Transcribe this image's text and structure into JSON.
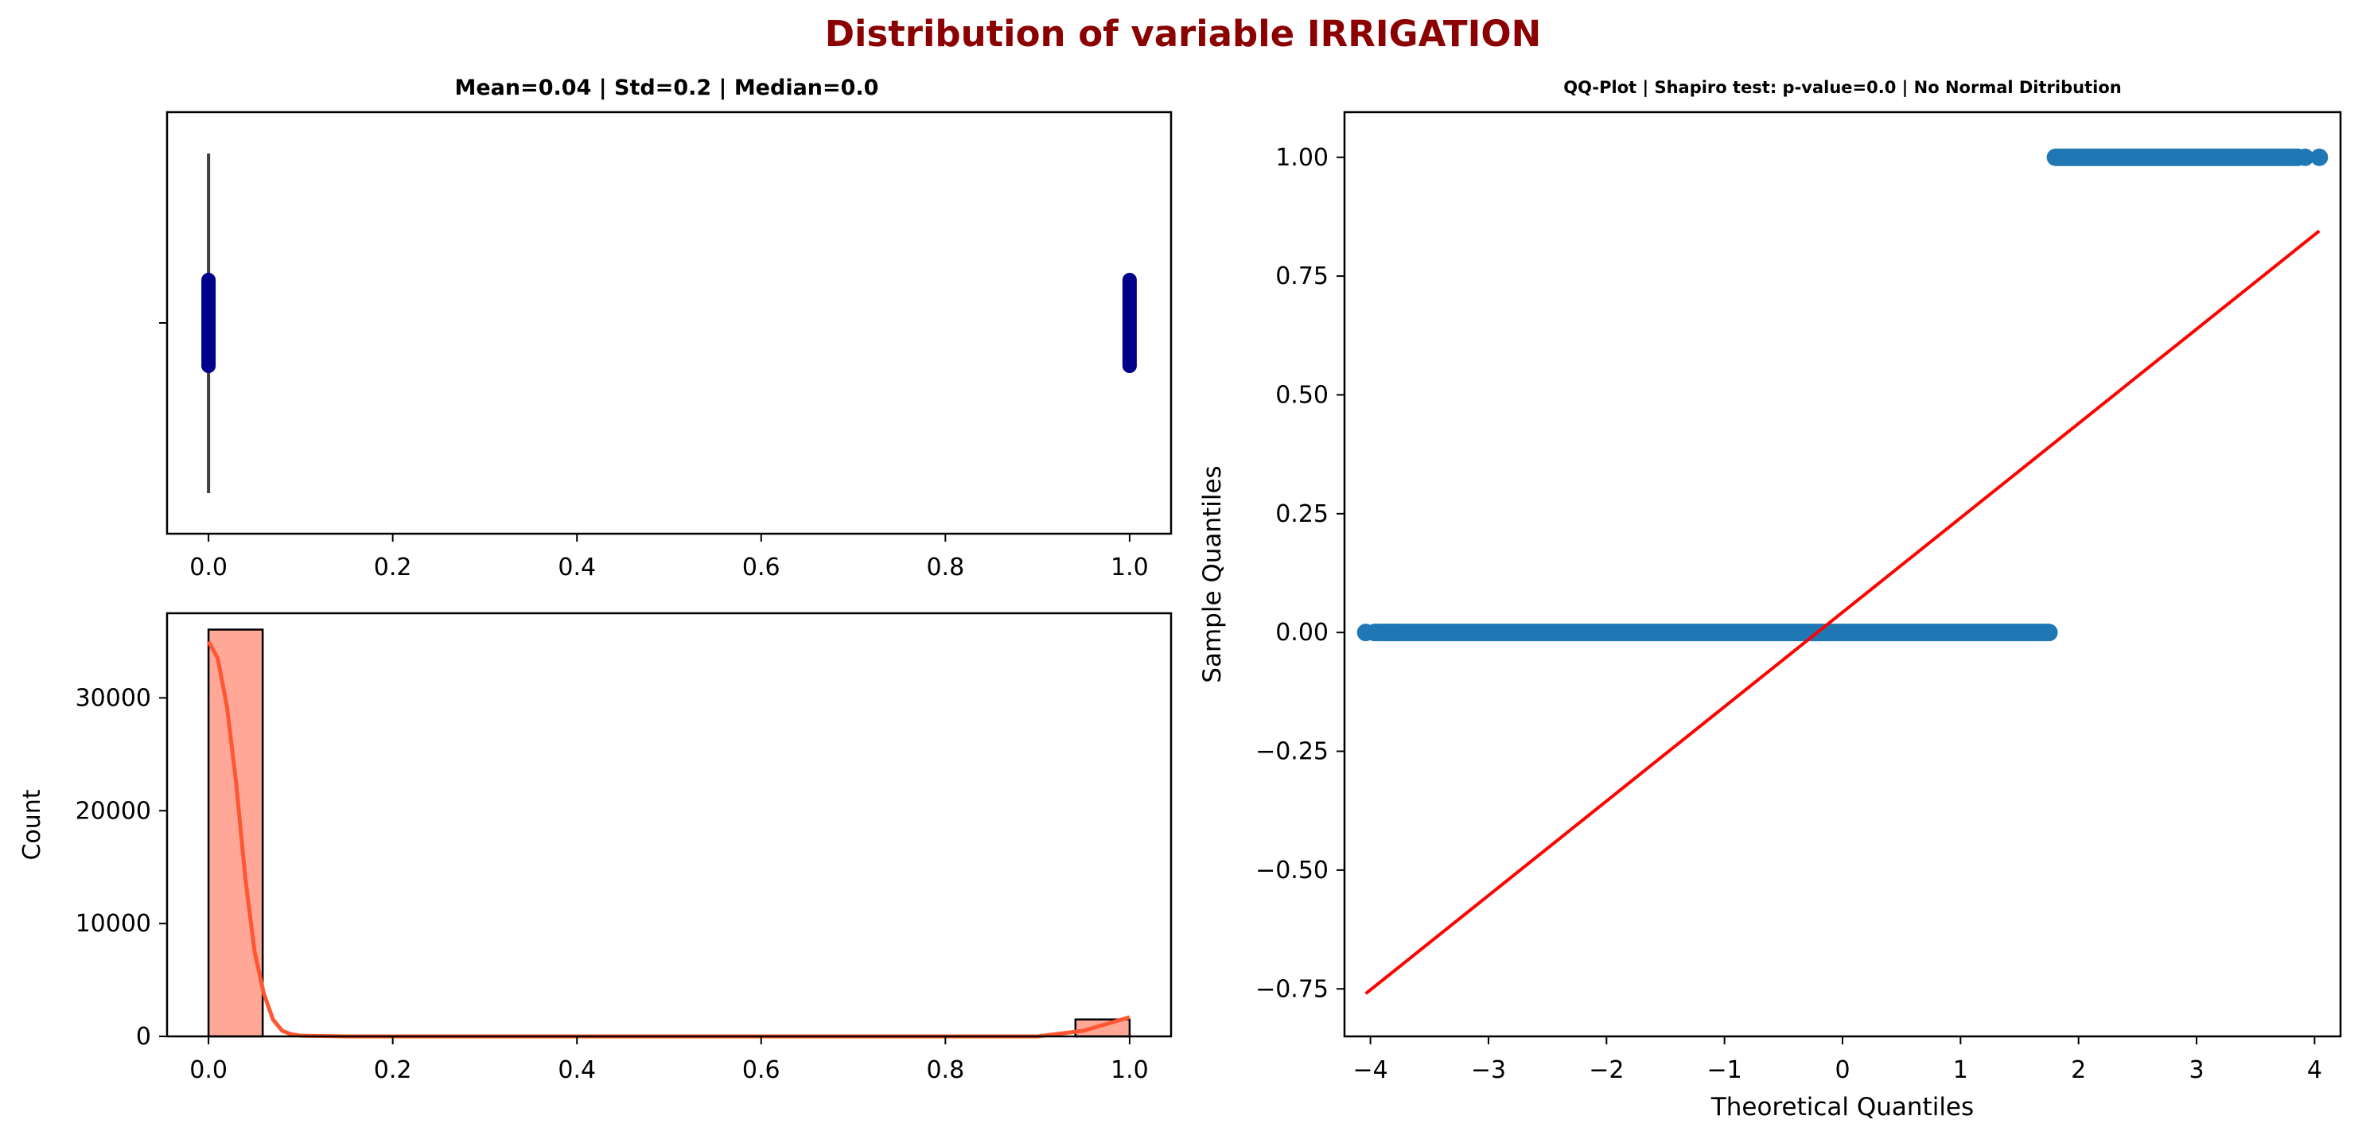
{
  "figure": {
    "suptitle": "Distribution of variable IRRIGATION",
    "suptitle_color": "#8b0000"
  },
  "chart_data": [
    {
      "id": "boxplot",
      "type": "box-strip",
      "title": "Mean=0.04 | Std=0.2 | Median=0.0",
      "xlim": [
        -0.045,
        1.045
      ],
      "xticks": [
        "0.0",
        "0.2",
        "0.4",
        "0.6",
        "0.8",
        "1.0"
      ],
      "box": {
        "min": 0.0,
        "q1": 0.0,
        "median": 0.0,
        "q3": 0.0,
        "max": 0.0,
        "whisker_visual": "thin"
      },
      "strip_points": [
        0.0,
        1.0
      ],
      "strip_color": "#00008b",
      "box_line_color": "#3f3f3f"
    },
    {
      "id": "histogram",
      "type": "bar",
      "xlim": [
        -0.045,
        1.045
      ],
      "ylim": [
        0,
        37500
      ],
      "xticks": [
        "0.0",
        "0.2",
        "0.4",
        "0.6",
        "0.8",
        "1.0"
      ],
      "yticks": [
        "0",
        "10000",
        "20000",
        "30000"
      ],
      "ylabel": "Count",
      "bins": [
        {
          "x0": 0.0,
          "x1": 0.0588,
          "count": 36050
        },
        {
          "x0": 0.9412,
          "x1": 1.0,
          "count": 1500
        }
      ],
      "kde": [
        [
          0.0,
          35000
        ],
        [
          0.01,
          33500
        ],
        [
          0.02,
          29200
        ],
        [
          0.03,
          22500
        ],
        [
          0.04,
          14000
        ],
        [
          0.05,
          7500
        ],
        [
          0.06,
          3800
        ],
        [
          0.07,
          1500
        ],
        [
          0.08,
          500
        ],
        [
          0.09,
          180
        ],
        [
          0.1,
          60
        ],
        [
          0.15,
          0
        ],
        [
          0.9,
          0
        ],
        [
          0.95,
          500
        ],
        [
          1.0,
          1700
        ]
      ],
      "bar_color": "#ffa898",
      "kde_color": "#ff5733"
    },
    {
      "id": "qqplot",
      "type": "scatter",
      "title": "QQ-Plot | Shapiro test: p-value=0.0 | No Normal Ditribution",
      "xlabel": "Theoretical Quantiles",
      "ylabel": "Sample Quantiles",
      "xlim": [
        -4.22,
        4.22
      ],
      "ylim": [
        -0.85,
        1.095
      ],
      "xticks": [
        "−4",
        "−3",
        "−2",
        "−1",
        "0",
        "1",
        "2",
        "3",
        "4"
      ],
      "yticks": [
        "−0.75",
        "−0.50",
        "−0.25",
        "0.00",
        "0.25",
        "0.50",
        "0.75",
        "1.00"
      ],
      "series": [
        {
          "y": 0.0,
          "x_range": [
            -4.04,
            1.75
          ],
          "outliers": [
            -4.04,
            -3.87,
            -3.77
          ]
        },
        {
          "y": 1.0,
          "x_range": [
            1.73,
            3.86
          ],
          "outliers": [
            3.92,
            4.04
          ]
        }
      ],
      "fit_line": [
        [
          -4.04,
          -0.76
        ],
        [
          4.04,
          0.845
        ]
      ],
      "point_color": "#1f77b4",
      "line_color": "#ff0000"
    }
  ]
}
